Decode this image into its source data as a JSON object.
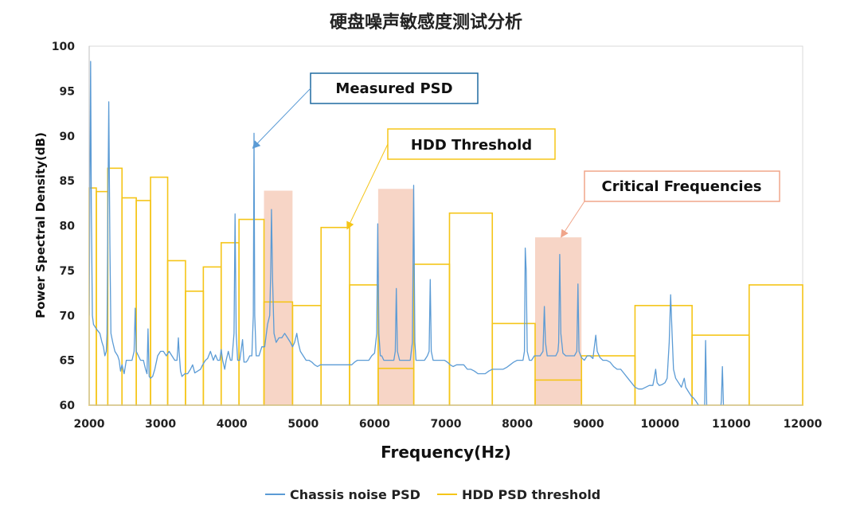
{
  "chart_data": {
    "type": "line",
    "title": "硬盘噪声敏感度测试分析",
    "xlabel": "Frequency(Hz)",
    "ylabel": "Power Spectral Density(dB)",
    "xlim": [
      2000,
      12000
    ],
    "ylim": [
      60,
      100
    ],
    "xticks": [
      2000,
      3000,
      4000,
      5000,
      6000,
      7000,
      8000,
      9000,
      10000,
      11000,
      12000
    ],
    "yticks": [
      60,
      65,
      70,
      75,
      80,
      85,
      90,
      95,
      100
    ],
    "grid": "none",
    "legend_position": "bottom",
    "colors": {
      "psd": "#5b9bd5",
      "threshold": "#f5c518",
      "highlight": "#f4c7b3",
      "annotation_measured": "#1f6aa0",
      "annotation_threshold": "#f5c518",
      "annotation_critical": "#f0a58a"
    },
    "series": [
      {
        "name": "Chassis noise PSD",
        "color": "#5b9bd5",
        "points": [
          [
            2000,
            70
          ],
          [
            2010,
            84
          ],
          [
            2020,
            98.3
          ],
          [
            2030,
            82
          ],
          [
            2045,
            70
          ],
          [
            2060,
            69
          ],
          [
            2100,
            68.5
          ],
          [
            2150,
            68
          ],
          [
            2180,
            67
          ],
          [
            2200,
            66.5
          ],
          [
            2220,
            65.5
          ],
          [
            2240,
            66
          ],
          [
            2250,
            68
          ],
          [
            2260,
            80
          ],
          [
            2275,
            93.8
          ],
          [
            2290,
            78
          ],
          [
            2305,
            68
          ],
          [
            2330,
            67
          ],
          [
            2360,
            66
          ],
          [
            2400,
            65.5
          ],
          [
            2420,
            65
          ],
          [
            2440,
            63.8
          ],
          [
            2460,
            64.5
          ],
          [
            2490,
            63.5
          ],
          [
            2520,
            65
          ],
          [
            2560,
            65
          ],
          [
            2600,
            65
          ],
          [
            2630,
            66
          ],
          [
            2645,
            70.8
          ],
          [
            2660,
            66
          ],
          [
            2690,
            65.5
          ],
          [
            2720,
            65
          ],
          [
            2760,
            65
          ],
          [
            2790,
            64
          ],
          [
            2810,
            63.5
          ],
          [
            2825,
            68.5
          ],
          [
            2840,
            63.2
          ],
          [
            2860,
            63
          ],
          [
            2890,
            63.2
          ],
          [
            2920,
            64
          ],
          [
            2960,
            65.5
          ],
          [
            3000,
            66
          ],
          [
            3040,
            66
          ],
          [
            3080,
            65.5
          ],
          [
            3120,
            66
          ],
          [
            3160,
            65.5
          ],
          [
            3200,
            65
          ],
          [
            3230,
            65
          ],
          [
            3240,
            66
          ],
          [
            3250,
            67.5
          ],
          [
            3260,
            66
          ],
          [
            3280,
            63.8
          ],
          [
            3300,
            63.2
          ],
          [
            3340,
            63.5
          ],
          [
            3380,
            63.5
          ],
          [
            3420,
            64
          ],
          [
            3450,
            64.5
          ],
          [
            3480,
            63.6
          ],
          [
            3520,
            63.8
          ],
          [
            3560,
            64
          ],
          [
            3590,
            64.5
          ],
          [
            3630,
            65
          ],
          [
            3660,
            65.2
          ],
          [
            3700,
            66
          ],
          [
            3740,
            65
          ],
          [
            3770,
            65.6
          ],
          [
            3800,
            65
          ],
          [
            3830,
            65
          ],
          [
            3850,
            66.2
          ],
          [
            3870,
            65
          ],
          [
            3900,
            64
          ],
          [
            3920,
            65
          ],
          [
            3950,
            66
          ],
          [
            3980,
            65
          ],
          [
            4000,
            65
          ],
          [
            4030,
            68
          ],
          [
            4045,
            81.3
          ],
          [
            4060,
            68
          ],
          [
            4080,
            65
          ],
          [
            4110,
            65
          ],
          [
            4150,
            67.3
          ],
          [
            4170,
            64.8
          ],
          [
            4200,
            64.8
          ],
          [
            4220,
            65
          ],
          [
            4250,
            65.5
          ],
          [
            4280,
            65.5
          ],
          [
            4300,
            70
          ],
          [
            4310,
            90.3
          ],
          [
            4320,
            70
          ],
          [
            4340,
            65.5
          ],
          [
            4380,
            65.5
          ],
          [
            4420,
            66.5
          ],
          [
            4460,
            66.5
          ],
          [
            4500,
            69
          ],
          [
            4530,
            70
          ],
          [
            4545,
            75
          ],
          [
            4555,
            81.8
          ],
          [
            4570,
            74
          ],
          [
            4590,
            68
          ],
          [
            4620,
            67
          ],
          [
            4660,
            67.5
          ],
          [
            4700,
            67.5
          ],
          [
            4740,
            68
          ],
          [
            4780,
            67.5
          ],
          [
            4820,
            67
          ],
          [
            4850,
            66.5
          ],
          [
            4880,
            67
          ],
          [
            4910,
            68
          ],
          [
            4930,
            67
          ],
          [
            4960,
            66
          ],
          [
            5000,
            65.5
          ],
          [
            5040,
            65
          ],
          [
            5080,
            65
          ],
          [
            5120,
            64.8
          ],
          [
            5160,
            64.5
          ],
          [
            5200,
            64.3
          ],
          [
            5240,
            64.5
          ],
          [
            5280,
            64.5
          ],
          [
            5320,
            64.5
          ],
          [
            5360,
            64.5
          ],
          [
            5400,
            64.5
          ],
          [
            5440,
            64.5
          ],
          [
            5480,
            64.5
          ],
          [
            5520,
            64.5
          ],
          [
            5560,
            64.5
          ],
          [
            5600,
            64.5
          ],
          [
            5640,
            64.5
          ],
          [
            5680,
            64.5
          ],
          [
            5720,
            64.8
          ],
          [
            5760,
            65
          ],
          [
            5800,
            65
          ],
          [
            5840,
            65
          ],
          [
            5880,
            65
          ],
          [
            5920,
            65
          ],
          [
            5960,
            65.5
          ],
          [
            6000,
            65.8
          ],
          [
            6030,
            68
          ],
          [
            6045,
            80.2
          ],
          [
            6060,
            68
          ],
          [
            6080,
            65.5
          ],
          [
            6100,
            65.5
          ],
          [
            6130,
            65
          ],
          [
            6160,
            65
          ],
          [
            6200,
            65
          ],
          [
            6240,
            65
          ],
          [
            6270,
            65
          ],
          [
            6290,
            66
          ],
          [
            6305,
            73
          ],
          [
            6320,
            66
          ],
          [
            6350,
            65
          ],
          [
            6400,
            65
          ],
          [
            6450,
            65
          ],
          [
            6500,
            65
          ],
          [
            6530,
            67
          ],
          [
            6548,
            84.5
          ],
          [
            6565,
            67
          ],
          [
            6580,
            65
          ],
          [
            6620,
            65
          ],
          [
            6660,
            65
          ],
          [
            6700,
            65
          ],
          [
            6740,
            65.5
          ],
          [
            6765,
            66
          ],
          [
            6780,
            74
          ],
          [
            6795,
            66
          ],
          [
            6820,
            65
          ],
          [
            6860,
            65
          ],
          [
            6900,
            65
          ],
          [
            6940,
            65
          ],
          [
            6980,
            65
          ],
          [
            7020,
            64.8
          ],
          [
            7060,
            64.5
          ],
          [
            7100,
            64.3
          ],
          [
            7150,
            64.5
          ],
          [
            7200,
            64.5
          ],
          [
            7250,
            64.5
          ],
          [
            7300,
            64
          ],
          [
            7350,
            64
          ],
          [
            7400,
            63.8
          ],
          [
            7450,
            63.5
          ],
          [
            7500,
            63.5
          ],
          [
            7550,
            63.5
          ],
          [
            7600,
            63.8
          ],
          [
            7650,
            64
          ],
          [
            7700,
            64
          ],
          [
            7750,
            64
          ],
          [
            7800,
            64
          ],
          [
            7850,
            64.2
          ],
          [
            7900,
            64.5
          ],
          [
            7950,
            64.8
          ],
          [
            8000,
            65
          ],
          [
            8040,
            65
          ],
          [
            8080,
            65
          ],
          [
            8100,
            66
          ],
          [
            8112,
            77.5
          ],
          [
            8125,
            75
          ],
          [
            8140,
            66
          ],
          [
            8170,
            65
          ],
          [
            8200,
            65
          ],
          [
            8240,
            65.5
          ],
          [
            8280,
            65.5
          ],
          [
            8320,
            65.5
          ],
          [
            8360,
            66
          ],
          [
            8380,
            71
          ],
          [
            8395,
            67
          ],
          [
            8420,
            65.5
          ],
          [
            8460,
            65.5
          ],
          [
            8500,
            65.5
          ],
          [
            8540,
            65.5
          ],
          [
            8570,
            66
          ],
          [
            8580,
            67
          ],
          [
            8595,
            76.8
          ],
          [
            8610,
            68
          ],
          [
            8640,
            65.8
          ],
          [
            8680,
            65.5
          ],
          [
            8720,
            65.5
          ],
          [
            8760,
            65.5
          ],
          [
            8800,
            65.5
          ],
          [
            8835,
            66
          ],
          [
            8850,
            73.5
          ],
          [
            8865,
            66
          ],
          [
            8900,
            65.3
          ],
          [
            8940,
            65
          ],
          [
            8980,
            65.5
          ],
          [
            9020,
            65.5
          ],
          [
            9060,
            65.2
          ],
          [
            9080,
            66.5
          ],
          [
            9100,
            67.8
          ],
          [
            9120,
            66
          ],
          [
            9160,
            65.3
          ],
          [
            9200,
            65
          ],
          [
            9250,
            65
          ],
          [
            9300,
            64.8
          ],
          [
            9350,
            64.3
          ],
          [
            9400,
            64
          ],
          [
            9450,
            64
          ],
          [
            9500,
            63.5
          ],
          [
            9550,
            63
          ],
          [
            9600,
            62.5
          ],
          [
            9650,
            62
          ],
          [
            9700,
            61.8
          ],
          [
            9750,
            61.8
          ],
          [
            9800,
            62
          ],
          [
            9850,
            62.2
          ],
          [
            9900,
            62.2
          ],
          [
            9920,
            63
          ],
          [
            9940,
            64
          ],
          [
            9960,
            62.5
          ],
          [
            9990,
            62.2
          ],
          [
            10030,
            62.3
          ],
          [
            10070,
            62.5
          ],
          [
            10100,
            63
          ],
          [
            10130,
            67
          ],
          [
            10150,
            72.3
          ],
          [
            10170,
            68
          ],
          [
            10190,
            64
          ],
          [
            10220,
            63
          ],
          [
            10260,
            62.5
          ],
          [
            10300,
            62
          ],
          [
            10340,
            63
          ],
          [
            10360,
            62
          ],
          [
            10400,
            61.5
          ],
          [
            10440,
            61
          ],
          [
            10470,
            60.8
          ],
          [
            10500,
            60.5
          ],
          [
            10540,
            60
          ],
          [
            10580,
            59
          ],
          [
            10620,
            57
          ],
          [
            10640,
            67.2
          ],
          [
            10660,
            58
          ],
          [
            10700,
            58
          ],
          [
            10740,
            58
          ],
          [
            10780,
            58
          ],
          [
            10830,
            58
          ],
          [
            10860,
            60.5
          ],
          [
            10875,
            64.3
          ],
          [
            10890,
            60
          ],
          [
            10910,
            56
          ]
        ]
      },
      {
        "name": "HDD PSD threshold",
        "color": "#f5c518",
        "steps": [
          [
            2000,
            2100,
            84.2
          ],
          [
            2100,
            2260,
            83.8
          ],
          [
            2260,
            2460,
            86.4
          ],
          [
            2460,
            2660,
            83.1
          ],
          [
            2660,
            2860,
            82.8
          ],
          [
            2860,
            3100,
            85.4
          ],
          [
            3100,
            3350,
            76.1
          ],
          [
            3350,
            3600,
            72.7
          ],
          [
            3600,
            3850,
            75.4
          ],
          [
            3850,
            4100,
            78.1
          ],
          [
            4100,
            4450,
            80.7
          ],
          [
            4450,
            4850,
            71.5
          ],
          [
            4850,
            5250,
            71.1
          ],
          [
            5250,
            5650,
            79.8
          ],
          [
            5650,
            6050,
            73.4
          ],
          [
            6050,
            6550,
            64.1
          ],
          [
            6550,
            7050,
            75.7
          ],
          [
            7050,
            7650,
            81.4
          ],
          [
            7650,
            8250,
            69.1
          ],
          [
            8250,
            8900,
            62.8
          ],
          [
            8900,
            9650,
            65.5
          ],
          [
            9650,
            10450,
            71.1
          ],
          [
            10450,
            11250,
            67.8
          ],
          [
            11250,
            12000,
            73.4
          ]
        ]
      }
    ],
    "highlight_regions": [
      {
        "x": [
          4450,
          4850
        ],
        "y_top": 83.9
      },
      {
        "x": [
          6050,
          6550
        ],
        "y_top": 84.1
      },
      {
        "x": [
          8250,
          8900
        ],
        "y_top": 78.7
      }
    ],
    "annotations": [
      {
        "text": "Measured PSD",
        "points_to": [
          4300,
          88.7
        ]
      },
      {
        "text": "HDD Threshold",
        "points_to": [
          5620,
          79.7
        ]
      },
      {
        "text": "Critical Frequencies",
        "points_to": [
          8620,
          78.8
        ]
      }
    ]
  }
}
